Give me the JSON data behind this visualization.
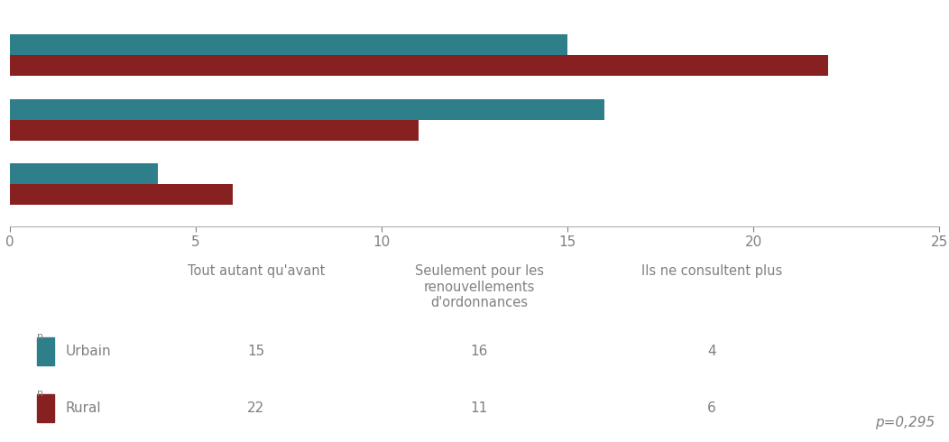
{
  "categories": [
    "Ils ne consultent plus",
    "Seulement pour les renouvellements\nd'ordonnances",
    "Tout autant qu'avant"
  ],
  "urbain_values": [
    4,
    16,
    15
  ],
  "rural_values": [
    6,
    11,
    22
  ],
  "urbain_color": "#2E7F8A",
  "rural_color": "#872020",
  "xlim": [
    0,
    25
  ],
  "xticks": [
    0,
    5,
    10,
    15,
    20,
    25
  ],
  "bar_height": 0.32,
  "background_color": "#ffffff",
  "legend_labels": [
    "Urbain",
    "Rural"
  ],
  "table_col_headers": [
    "Tout autant qu'avant",
    "Seulement pour les\nrenouvellements\nd'ordonnances",
    "Ils ne consultent plus"
  ],
  "table_urbain": [
    15,
    16,
    4
  ],
  "table_rural": [
    22,
    11,
    6
  ],
  "pvalue": "p=0,295",
  "font_color": "#808080"
}
